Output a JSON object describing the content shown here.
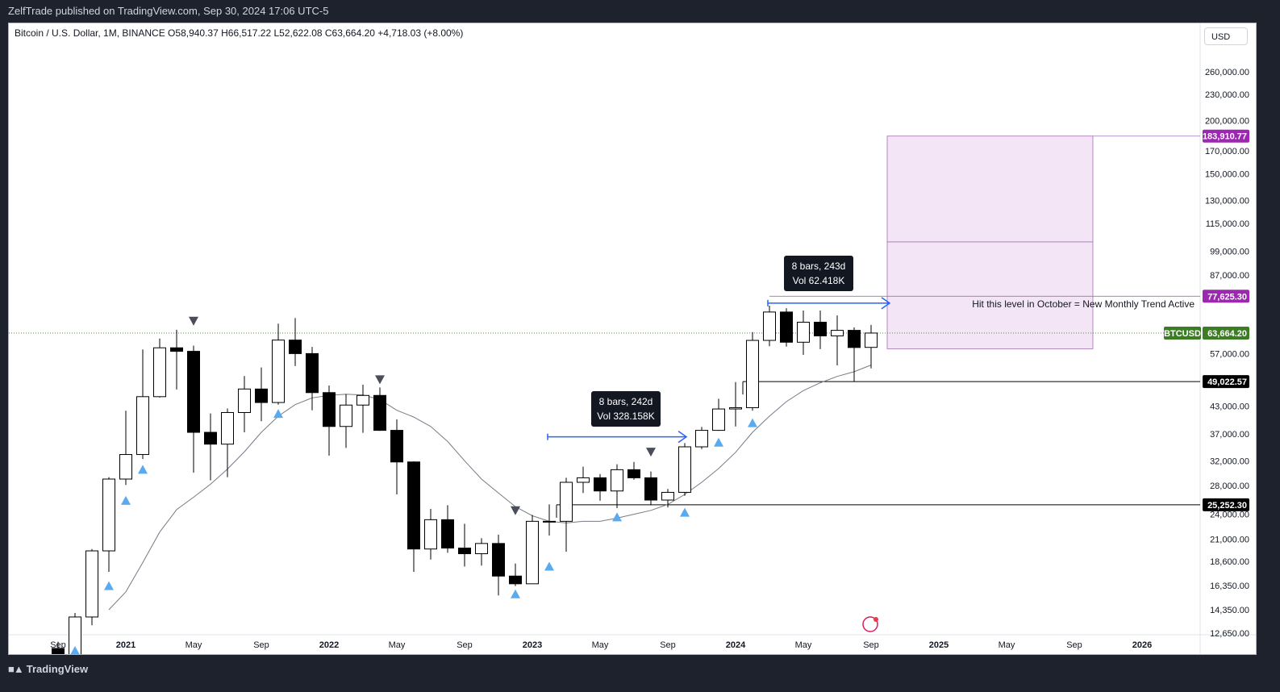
{
  "header": {
    "published": "ZelfTrade published on TradingView.com, Sep 30, 2024 17:06 UTC-5"
  },
  "symbol": {
    "info": "Bitcoin / U.S. Dollar, 1M, BINANCE  O58,940.37  H66,517.22  L52,622.08  C63,664.20  +4,718.03 (+8.00%)"
  },
  "currency_button": "USD",
  "footer": {
    "brand": "TradingView"
  },
  "colors": {
    "bull_fill": "#ffffff",
    "bear_fill": "#000000",
    "signal_up": "#5aaaf0",
    "signal_down": "#4a4e59",
    "arrow": "#2962ff",
    "target_box": "#f3e5f5",
    "target_border": "#a270b3",
    "last_price": "#3a7d23",
    "level_tag": "#000000",
    "target_tag": "#9c27b0"
  },
  "annotations": {
    "measure1": {
      "line1": "8 bars, 242d",
      "line2": "Vol 328.158K"
    },
    "measure2": {
      "line1": "8 bars, 243d",
      "line2": "Vol 62.418K"
    },
    "note": "Hit this level in October = New Monthly Trend Active"
  },
  "price_tags": {
    "target": "183,910.77",
    "level1": "77,625.30",
    "symbol": "BTCUSD",
    "last": "63,664.20",
    "support1": "49,022.57",
    "support2": "25,252.30"
  },
  "chart_data": {
    "type": "candlestick",
    "scale": "log",
    "ylim": [
      12000,
      300000
    ],
    "y_ticks": [
      {
        "v": 260000,
        "label": "260,000.00"
      },
      {
        "v": 230000,
        "label": "230,000.00"
      },
      {
        "v": 200000,
        "label": "200,000.00"
      },
      {
        "v": 170000,
        "label": "170,000.00"
      },
      {
        "v": 150000,
        "label": "150,000.00"
      },
      {
        "v": 130000,
        "label": "130,000.00"
      },
      {
        "v": 115000,
        "label": "115,000.00"
      },
      {
        "v": 99000,
        "label": "99,000.00"
      },
      {
        "v": 87000,
        "label": "87,000.00"
      },
      {
        "v": 57000,
        "label": "57,000.00"
      },
      {
        "v": 43000,
        "label": "43,000.00"
      },
      {
        "v": 37000,
        "label": "37,000.00"
      },
      {
        "v": 32000,
        "label": "32,000.00"
      },
      {
        "v": 28000,
        "label": "28,000.00"
      },
      {
        "v": 24000,
        "label": "24,000.00"
      },
      {
        "v": 21000,
        "label": "21,000.00"
      },
      {
        "v": 18600,
        "label": "18,600.00"
      },
      {
        "v": 16350,
        "label": "16,350.00"
      },
      {
        "v": 14350,
        "label": "14,350.00"
      },
      {
        "v": 12650,
        "label": "12,650.00"
      }
    ],
    "x_ticks": [
      {
        "month": "2020-09",
        "label": "Sep"
      },
      {
        "month": "2021-01",
        "label": "2021"
      },
      {
        "month": "2021-05",
        "label": "May"
      },
      {
        "month": "2021-09",
        "label": "Sep"
      },
      {
        "month": "2022-01",
        "label": "2022"
      },
      {
        "month": "2022-05",
        "label": "May"
      },
      {
        "month": "2022-09",
        "label": "Sep"
      },
      {
        "month": "2023-01",
        "label": "2023"
      },
      {
        "month": "2023-05",
        "label": "May"
      },
      {
        "month": "2023-09",
        "label": "Sep"
      },
      {
        "month": "2024-01",
        "label": "2024"
      },
      {
        "month": "2024-05",
        "label": "May"
      },
      {
        "month": "2024-09",
        "label": "Sep"
      },
      {
        "month": "2025-01",
        "label": "2025"
      },
      {
        "month": "2025-05",
        "label": "May"
      },
      {
        "month": "2025-09",
        "label": "Sep"
      },
      {
        "month": "2026-01",
        "label": "2026"
      }
    ],
    "candles": [
      {
        "t": "2020-09",
        "o": 11650,
        "h": 12080,
        "l": 9850,
        "c": 10780
      },
      {
        "t": "2020-10",
        "o": 10780,
        "h": 14100,
        "l": 10400,
        "c": 13800
      },
      {
        "t": "2020-11",
        "o": 13800,
        "h": 19900,
        "l": 13200,
        "c": 19700
      },
      {
        "t": "2020-12",
        "o": 19700,
        "h": 29300,
        "l": 17600,
        "c": 29000
      },
      {
        "t": "2021-01",
        "o": 29000,
        "h": 41900,
        "l": 28100,
        "c": 33100
      },
      {
        "t": "2021-02",
        "o": 33100,
        "h": 58300,
        "l": 32300,
        "c": 45200
      },
      {
        "t": "2021-03",
        "o": 45200,
        "h": 61800,
        "l": 45000,
        "c": 58800
      },
      {
        "t": "2021-04",
        "o": 58800,
        "h": 64800,
        "l": 47000,
        "c": 57700
      },
      {
        "t": "2021-05",
        "o": 57700,
        "h": 59500,
        "l": 30000,
        "c": 37300
      },
      {
        "t": "2021-06",
        "o": 37300,
        "h": 41300,
        "l": 28800,
        "c": 35000
      },
      {
        "t": "2021-07",
        "o": 35000,
        "h": 42400,
        "l": 29300,
        "c": 41500
      },
      {
        "t": "2021-08",
        "o": 41500,
        "h": 50500,
        "l": 37300,
        "c": 47100
      },
      {
        "t": "2021-09",
        "o": 47100,
        "h": 52900,
        "l": 39600,
        "c": 43800
      },
      {
        "t": "2021-10",
        "o": 43800,
        "h": 67000,
        "l": 43300,
        "c": 61300
      },
      {
        "t": "2021-11",
        "o": 61300,
        "h": 69000,
        "l": 53300,
        "c": 57000
      },
      {
        "t": "2021-12",
        "o": 57000,
        "h": 59100,
        "l": 42000,
        "c": 46200
      },
      {
        "t": "2022-01",
        "o": 46200,
        "h": 48000,
        "l": 32900,
        "c": 38500
      },
      {
        "t": "2022-02",
        "o": 38500,
        "h": 45800,
        "l": 34300,
        "c": 43200
      },
      {
        "t": "2022-03",
        "o": 43200,
        "h": 48200,
        "l": 37200,
        "c": 45500
      },
      {
        "t": "2022-04",
        "o": 45500,
        "h": 47500,
        "l": 37600,
        "c": 37700
      },
      {
        "t": "2022-05",
        "o": 37700,
        "h": 40000,
        "l": 26700,
        "c": 31800
      },
      {
        "t": "2022-06",
        "o": 31800,
        "h": 31900,
        "l": 17600,
        "c": 19900
      },
      {
        "t": "2022-07",
        "o": 19900,
        "h": 24700,
        "l": 18800,
        "c": 23300
      },
      {
        "t": "2022-08",
        "o": 23300,
        "h": 25200,
        "l": 19500,
        "c": 20000
      },
      {
        "t": "2022-09",
        "o": 20000,
        "h": 22800,
        "l": 18100,
        "c": 19400
      },
      {
        "t": "2022-10",
        "o": 19400,
        "h": 21100,
        "l": 18200,
        "c": 20500
      },
      {
        "t": "2022-11",
        "o": 20500,
        "h": 21500,
        "l": 15500,
        "c": 17200
      },
      {
        "t": "2022-12",
        "o": 17200,
        "h": 18400,
        "l": 16300,
        "c": 16500
      },
      {
        "t": "2023-01",
        "o": 16500,
        "h": 23900,
        "l": 16500,
        "c": 23100
      },
      {
        "t": "2023-02",
        "o": 23100,
        "h": 25300,
        "l": 21400,
        "c": 23100
      },
      {
        "t": "2023-03",
        "o": 23100,
        "h": 29200,
        "l": 19600,
        "c": 28500
      },
      {
        "t": "2023-04",
        "o": 28500,
        "h": 31000,
        "l": 26900,
        "c": 29200
      },
      {
        "t": "2023-05",
        "o": 29200,
        "h": 29800,
        "l": 25800,
        "c": 27200
      },
      {
        "t": "2023-06",
        "o": 27200,
        "h": 31400,
        "l": 24800,
        "c": 30500
      },
      {
        "t": "2023-07",
        "o": 30500,
        "h": 31800,
        "l": 28900,
        "c": 29200
      },
      {
        "t": "2023-08",
        "o": 29200,
        "h": 30200,
        "l": 25200,
        "c": 25900
      },
      {
        "t": "2023-09",
        "o": 25900,
        "h": 27500,
        "l": 24900,
        "c": 27000
      },
      {
        "t": "2023-10",
        "o": 27000,
        "h": 35200,
        "l": 26500,
        "c": 34500
      },
      {
        "t": "2023-11",
        "o": 34500,
        "h": 38400,
        "l": 34100,
        "c": 37700
      },
      {
        "t": "2023-12",
        "o": 37700,
        "h": 44700,
        "l": 37600,
        "c": 42300
      },
      {
        "t": "2024-01",
        "o": 42300,
        "h": 48900,
        "l": 38500,
        "c": 42600
      },
      {
        "t": "2024-02",
        "o": 42600,
        "h": 64000,
        "l": 41900,
        "c": 61200
      },
      {
        "t": "2024-03",
        "o": 61200,
        "h": 73800,
        "l": 59300,
        "c": 71300
      },
      {
        "t": "2024-04",
        "o": 71300,
        "h": 72800,
        "l": 59200,
        "c": 60600
      },
      {
        "t": "2024-05",
        "o": 60600,
        "h": 71900,
        "l": 56600,
        "c": 67500
      },
      {
        "t": "2024-06",
        "o": 67500,
        "h": 71900,
        "l": 58400,
        "c": 62700
      },
      {
        "t": "2024-07",
        "o": 62700,
        "h": 70000,
        "l": 53500,
        "c": 64600
      },
      {
        "t": "2024-08",
        "o": 64600,
        "h": 65600,
        "l": 49000,
        "c": 58900
      },
      {
        "t": "2024-09",
        "o": 58940,
        "h": 66517,
        "l": 52622,
        "c": 63664
      }
    ],
    "moving_average": [
      {
        "t": "2020-12",
        "v": 14350
      },
      {
        "t": "2021-01",
        "v": 15800
      },
      {
        "t": "2021-02",
        "v": 18500
      },
      {
        "t": "2021-03",
        "v": 21800
      },
      {
        "t": "2021-04",
        "v": 24600
      },
      {
        "t": "2021-05",
        "v": 26300
      },
      {
        "t": "2021-06",
        "v": 28200
      },
      {
        "t": "2021-07",
        "v": 30600
      },
      {
        "t": "2021-08",
        "v": 33600
      },
      {
        "t": "2021-09",
        "v": 37300
      },
      {
        "t": "2021-10",
        "v": 40700
      },
      {
        "t": "2021-11",
        "v": 43300
      },
      {
        "t": "2021-12",
        "v": 44900
      },
      {
        "t": "2022-01",
        "v": 45500
      },
      {
        "t": "2022-02",
        "v": 45800
      },
      {
        "t": "2022-03",
        "v": 45600
      },
      {
        "t": "2022-04",
        "v": 44500
      },
      {
        "t": "2022-05",
        "v": 42000
      },
      {
        "t": "2022-06",
        "v": 40500
      },
      {
        "t": "2022-07",
        "v": 38500
      },
      {
        "t": "2022-08",
        "v": 35500
      },
      {
        "t": "2022-09",
        "v": 32000
      },
      {
        "t": "2022-10",
        "v": 29000
      },
      {
        "t": "2022-11",
        "v": 26900
      },
      {
        "t": "2022-12",
        "v": 25000
      },
      {
        "t": "2023-01",
        "v": 23800
      },
      {
        "t": "2023-02",
        "v": 23100
      },
      {
        "t": "2023-03",
        "v": 22900
      },
      {
        "t": "2023-04",
        "v": 23100
      },
      {
        "t": "2023-05",
        "v": 23100
      },
      {
        "t": "2023-06",
        "v": 23500
      },
      {
        "t": "2023-07",
        "v": 24000
      },
      {
        "t": "2023-08",
        "v": 24500
      },
      {
        "t": "2023-09",
        "v": 25300
      },
      {
        "t": "2023-10",
        "v": 26700
      },
      {
        "t": "2023-11",
        "v": 28500
      },
      {
        "t": "2023-12",
        "v": 30700
      },
      {
        "t": "2024-01",
        "v": 33500
      },
      {
        "t": "2024-02",
        "v": 37300
      },
      {
        "t": "2024-03",
        "v": 40700
      },
      {
        "t": "2024-04",
        "v": 44000
      },
      {
        "t": "2024-05",
        "v": 46700
      },
      {
        "t": "2024-06",
        "v": 48700
      },
      {
        "t": "2024-07",
        "v": 50400
      },
      {
        "t": "2024-08",
        "v": 51700
      },
      {
        "t": "2024-09",
        "v": 53600
      }
    ],
    "signals_up": [
      {
        "t": "2020-10",
        "v": 11500
      },
      {
        "t": "2020-12",
        "v": 16300
      },
      {
        "t": "2021-01",
        "v": 25800
      },
      {
        "t": "2021-02",
        "v": 30500
      },
      {
        "t": "2021-10",
        "v": 41200
      },
      {
        "t": "2022-12",
        "v": 15600
      },
      {
        "t": "2023-02",
        "v": 18100
      },
      {
        "t": "2023-06",
        "v": 23600
      },
      {
        "t": "2023-10",
        "v": 24200
      },
      {
        "t": "2023-12",
        "v": 35300
      },
      {
        "t": "2024-02",
        "v": 39200
      }
    ],
    "signals_down": [
      {
        "t": "2021-05",
        "v": 68000
      },
      {
        "t": "2022-04",
        "v": 49600
      },
      {
        "t": "2022-12",
        "v": 24500
      },
      {
        "t": "2023-08",
        "v": 33600
      }
    ],
    "horizontal_levels": [
      {
        "value": 49022.57,
        "from": "2024-02"
      },
      {
        "value": 25252.3,
        "from": "2023-03"
      }
    ],
    "last_price": 63664.2,
    "target_zone": {
      "from": "2024-10",
      "to": "2025-10",
      "top": 183910.77,
      "mid": 104000,
      "bottom": 58500,
      "level_value": 77625.3
    },
    "measure_arrows": [
      {
        "from": "2023-02",
        "to": "2023-10",
        "value": 36400
      },
      {
        "from": "2024-03",
        "to": "2024-10",
        "value": 74800
      }
    ]
  }
}
